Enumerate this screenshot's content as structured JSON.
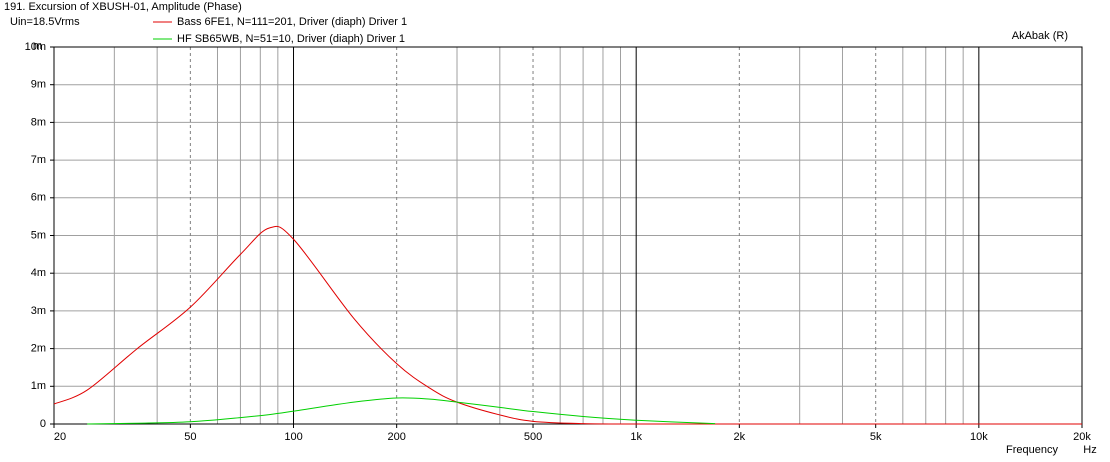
{
  "chart_data": {
    "type": "line",
    "title": "191. Excursion of XBUSH-01, Amplitude (Phase)",
    "subtitle": "Uin=18.5Vrms",
    "watermark": "AkAbak (R)",
    "y_unit": "m",
    "x_label": "Frequency",
    "x_unit": "Hz",
    "x_log": true,
    "grid": true,
    "x": [
      20,
      25,
      35,
      50,
      70,
      85,
      100,
      150,
      200,
      250,
      300,
      400,
      500,
      700,
      1000,
      1700,
      20000
    ],
    "series": [
      {
        "name": "Bass 6FE1, N=111=201, Driver (diaph) Driver 1",
        "color": "#e00000",
        "values": [
          0.00053,
          0.0009,
          0.002,
          0.0031,
          0.0045,
          0.0052,
          0.0049,
          0.0028,
          0.0016,
          0.00095,
          0.00058,
          0.00024,
          7e-05,
          1e-05,
          0,
          0,
          0
        ]
      },
      {
        "name": "HF SB65WB, N=51=10, Driver (diaph) Driver 1",
        "color": "#00d000",
        "values": [
          null,
          0,
          2e-05,
          6e-05,
          0.00017,
          0.00025,
          0.00034,
          0.00058,
          0.00069,
          0.00066,
          0.00058,
          0.00044,
          0.00033,
          0.0002,
          0.0001,
          1e-05,
          null
        ]
      }
    ],
    "xlim": [
      20,
      20000
    ],
    "ylim": [
      0,
      0.01
    ],
    "xticks": [
      20,
      50,
      100,
      200,
      500,
      {
        "value": 1000,
        "label": "1k"
      },
      {
        "value": 2000,
        "label": "2k"
      },
      {
        "value": 5000,
        "label": "5k"
      },
      {
        "value": 10000,
        "label": "10k"
      },
      {
        "value": 20000,
        "label": "20k"
      }
    ],
    "xminorticks": [
      30,
      40,
      60,
      70,
      80,
      90,
      300,
      400,
      600,
      700,
      800,
      900,
      3000,
      4000,
      6000,
      7000,
      8000,
      9000
    ],
    "yticks": [
      0,
      {
        "value": 0.001,
        "label": "1m"
      },
      {
        "value": 0.002,
        "label": "2m"
      },
      {
        "value": 0.003,
        "label": "3m"
      },
      {
        "value": 0.004,
        "label": "4m"
      },
      {
        "value": 0.005,
        "label": "5m"
      },
      {
        "value": 0.006,
        "label": "6m"
      },
      {
        "value": 0.007,
        "label": "7m"
      },
      {
        "value": 0.008,
        "label": "8m"
      },
      {
        "value": 0.009,
        "label": "9m"
      },
      {
        "value": 0.01,
        "label": "10m"
      }
    ]
  }
}
